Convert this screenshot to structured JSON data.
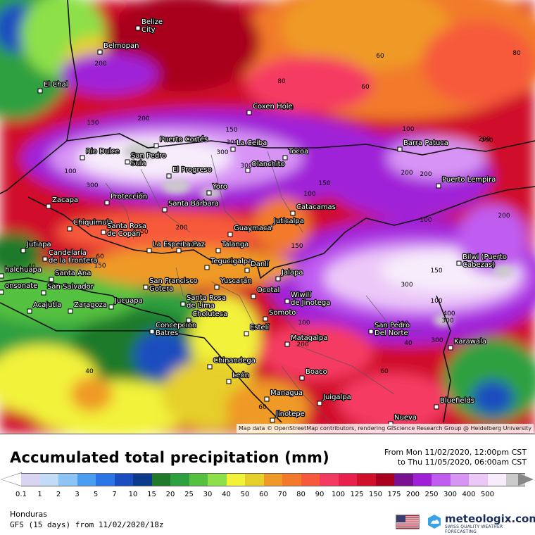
{
  "map": {
    "region": "Honduras",
    "attribution": "Map data © OpenStreetMap contributors, rendering GIScience Research Group @ Heidelberg University",
    "cities": [
      {
        "name": "Belize",
        "name2": "City"
      },
      {
        "name": "Belmopan"
      },
      {
        "name": "El Chal"
      },
      {
        "name": "Coxen Hole"
      },
      {
        "name": "Puerto Cortés"
      },
      {
        "name": "San Pedro",
        "name2": "Sula"
      },
      {
        "name": "La Ceiba"
      },
      {
        "name": "Rio Dulce"
      },
      {
        "name": "El Progreso"
      },
      {
        "name": "Olanchito"
      },
      {
        "name": "Tocoa"
      },
      {
        "name": "Barra Patuca"
      },
      {
        "name": "Puerto Lempira"
      },
      {
        "name": "Yoro"
      },
      {
        "name": "Zacapa"
      },
      {
        "name": "Protección"
      },
      {
        "name": "Santa Bárbara"
      },
      {
        "name": "Catacamas"
      },
      {
        "name": "Juticalpa"
      },
      {
        "name": "Chiquimula"
      },
      {
        "name": "Santa Rosa",
        "name2": "de Copán"
      },
      {
        "name": "Guaymaca"
      },
      {
        "name": "Jutiapa"
      },
      {
        "name": "La Esperanza"
      },
      {
        "name": "La Paz"
      },
      {
        "name": "Talanga"
      },
      {
        "name": "Bilwi (Puerto",
        "name2": "Cabezas)"
      },
      {
        "name": "Candelaria",
        "name2": "de la Frontera"
      },
      {
        "name": "Tegucigalpa"
      },
      {
        "name": "Danlí"
      },
      {
        "name": "Ahuachapán",
        "display": "halchuapa"
      },
      {
        "name": "Santa Ana"
      },
      {
        "name": "San Francisco",
        "name2": "Gotera"
      },
      {
        "name": "Yuscarán"
      },
      {
        "name": "Jalapa"
      },
      {
        "name": "Sonsonate",
        "display": "onsonate"
      },
      {
        "name": "San Salvador"
      },
      {
        "name": "Santa Rosa",
        "name2": "de Lima"
      },
      {
        "name": "Ocotal"
      },
      {
        "name": "Wiwilí",
        "name2": "de Jinotega"
      },
      {
        "name": "Acajutla"
      },
      {
        "name": "Zaragoza"
      },
      {
        "name": "Jucuapa"
      },
      {
        "name": "Somoto"
      },
      {
        "name": "Concepción",
        "name2": "Batres"
      },
      {
        "name": "Choluteca"
      },
      {
        "name": "San Pedro",
        "name2": "Del Norte"
      },
      {
        "name": "Estelí"
      },
      {
        "name": "Matagalpa"
      },
      {
        "name": "Karawala"
      },
      {
        "name": "Chinandega"
      },
      {
        "name": "Boaco"
      },
      {
        "name": "León"
      },
      {
        "name": "Juigalpa"
      },
      {
        "name": "Managua"
      },
      {
        "name": "Jinotepe"
      },
      {
        "name": "Bluefields"
      },
      {
        "name": "Nueva"
      }
    ],
    "contour_labels": [
      "200",
      "200",
      "150",
      "80",
      "60",
      "60",
      "80",
      "100",
      "100",
      "100",
      "150",
      "200",
      "200",
      "300",
      "200",
      "100",
      "300",
      "150",
      "300",
      "200",
      "250",
      "150",
      "200",
      "300",
      "400",
      "300",
      "200",
      "100",
      "60",
      "60",
      "40",
      "40",
      "300",
      "100",
      "200",
      "150",
      "40",
      "60",
      "200",
      "300",
      "150",
      "100"
    ],
    "colors": {
      "low_green": "#2f9e3a",
      "yellow": "#f5e43a",
      "orange": "#f08a2a",
      "red": "#e0203a",
      "dark_red": "#a8001e",
      "purple": "#9a1fd4",
      "light_purple": "#dc9af5",
      "white_purple": "#f5e9fb",
      "grey_max": "#c9c9c9"
    }
  },
  "header": {
    "title": "Accumulated total precipitation (mm)",
    "from": "From Mon 11/02/2020, 12:00pm CST",
    "to": "to Thu 11/05/2020, 06:00am CST"
  },
  "legend": {
    "colors": [
      "#d9d4f2",
      "#c2dcf7",
      "#8cc4f5",
      "#4a9df0",
      "#2b75e6",
      "#1a4dbf",
      "#0d3b8c",
      "#1f7a2c",
      "#2fa040",
      "#55c140",
      "#8de04a",
      "#f2f23a",
      "#e6cf2a",
      "#ef9a28",
      "#f27a2a",
      "#f75a3a",
      "#f53a62",
      "#e8204e",
      "#d0102a",
      "#a8001e",
      "#7a1190",
      "#a020d8",
      "#c05cf0",
      "#d894f5",
      "#ecc8f8",
      "#f7ecfb",
      "#cbcbcb"
    ],
    "ticks": [
      "0.1",
      "1",
      "2",
      "3",
      "5",
      "7",
      "10",
      "15",
      "20",
      "25",
      "30",
      "40",
      "50",
      "60",
      "70",
      "80",
      "90",
      "100",
      "125",
      "150",
      "175",
      "200",
      "250",
      "300",
      "400",
      "500"
    ]
  },
  "footer": {
    "region": "Honduras",
    "model": "GFS (15 days) from 11/02/2020/18z",
    "brand_name": "meteologix.com",
    "brand_tagline": "SWISS QUALITY WEATHER FORECASTING",
    "flag": "us-flag-icon"
  }
}
